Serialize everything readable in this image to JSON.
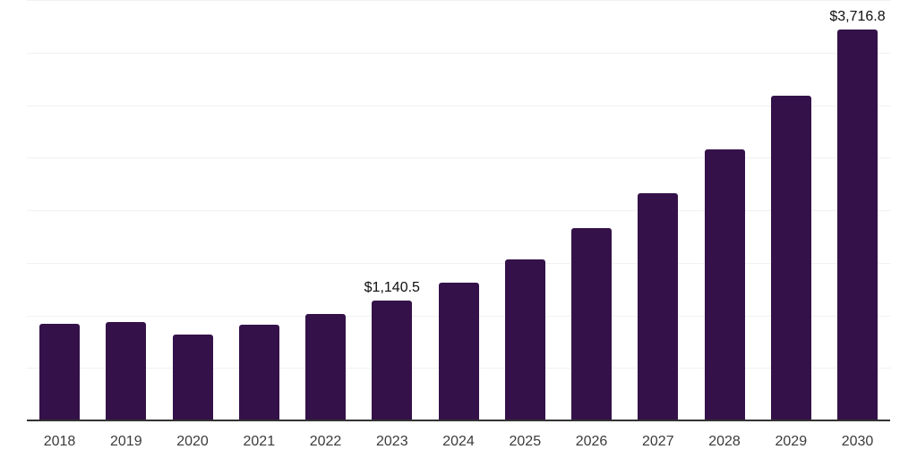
{
  "chart_data": {
    "type": "bar",
    "title": "",
    "xlabel": "",
    "ylabel": "",
    "categories": [
      "2018",
      "2019",
      "2020",
      "2021",
      "2022",
      "2023",
      "2024",
      "2025",
      "2026",
      "2027",
      "2028",
      "2029",
      "2030"
    ],
    "values": [
      921,
      933,
      820,
      908,
      1010,
      1140.5,
      1313,
      1534,
      1827,
      2161,
      2575,
      3091,
      3716.8
    ],
    "data_labels": {
      "2023": "$1,140.5",
      "2030": "$3,716.8"
    },
    "ylim": [
      0,
      4000
    ],
    "grid_step": 500,
    "grid": "horizontal",
    "legend": "none",
    "y_axis_labels_visible": false,
    "colors": {
      "bar": "#341249",
      "gridline": "#f1f1f2",
      "axis_line": "#333333",
      "tick_label": "#3b3b3b",
      "data_label": "#0f0f0f",
      "background": "#ffffff"
    }
  }
}
